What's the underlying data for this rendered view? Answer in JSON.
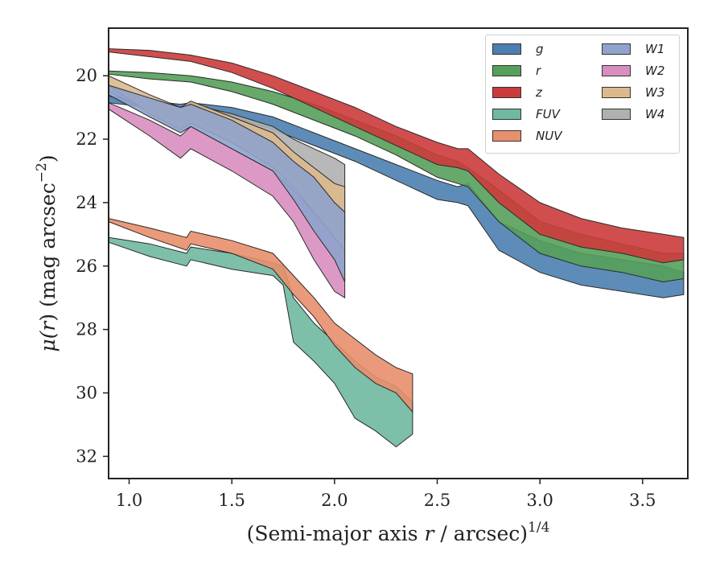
{
  "chart_data": {
    "type": "area",
    "xlabel_main": "(Semi-major axis ",
    "xlabel_var": "r",
    "xlabel_tail": " / arcsec)",
    "xlabel_sup": "1/4",
    "ylabel_main": "μ(",
    "ylabel_var": "r",
    "ylabel_tail": ") (mag arcsec",
    "ylabel_sup": "−2",
    "ylabel_close": ")",
    "xlim": [
      0.9,
      3.72
    ],
    "ylim": [
      32.7,
      18.5
    ],
    "x_ticks": [
      1.0,
      1.5,
      2.0,
      2.5,
      3.0,
      3.5
    ],
    "x_tick_labels": [
      "1.0",
      "1.5",
      "2.0",
      "2.5",
      "3.0",
      "3.5"
    ],
    "y_ticks": [
      20,
      22,
      24,
      26,
      28,
      30,
      32
    ],
    "y_tick_labels": [
      "20",
      "22",
      "24",
      "26",
      "28",
      "30",
      "32"
    ],
    "legend_placement": "top-right",
    "series": [
      {
        "name": "g",
        "color": "#4c7fb0",
        "points": [
          [
            0.9,
            20.65,
            20.85
          ],
          [
            1.1,
            20.8,
            21.0
          ],
          [
            1.25,
            20.9,
            21.2
          ],
          [
            1.3,
            20.85,
            21.1
          ],
          [
            1.5,
            21.0,
            21.3
          ],
          [
            1.7,
            21.3,
            21.7
          ],
          [
            1.9,
            21.8,
            22.2
          ],
          [
            2.1,
            22.3,
            22.7
          ],
          [
            2.3,
            22.8,
            23.3
          ],
          [
            2.5,
            23.3,
            23.9
          ],
          [
            2.6,
            23.5,
            24.0
          ],
          [
            2.65,
            23.4,
            24.1
          ],
          [
            2.8,
            24.6,
            25.5
          ],
          [
            3.0,
            25.2,
            26.2
          ],
          [
            3.2,
            25.6,
            26.6
          ],
          [
            3.4,
            25.8,
            26.8
          ],
          [
            3.6,
            26.0,
            27.0
          ],
          [
            3.7,
            26.2,
            26.9
          ]
        ]
      },
      {
        "name": "r",
        "color": "#55a05a",
        "points": [
          [
            0.9,
            19.85,
            19.95
          ],
          [
            1.1,
            19.9,
            20.1
          ],
          [
            1.3,
            20.0,
            20.2
          ],
          [
            1.5,
            20.2,
            20.5
          ],
          [
            1.7,
            20.5,
            20.9
          ],
          [
            1.9,
            20.9,
            21.4
          ],
          [
            2.1,
            21.4,
            21.9
          ],
          [
            2.3,
            21.9,
            22.5
          ],
          [
            2.5,
            22.5,
            23.2
          ],
          [
            2.6,
            22.7,
            23.4
          ],
          [
            2.65,
            22.9,
            23.5
          ],
          [
            2.8,
            23.6,
            24.6
          ],
          [
            3.0,
            24.6,
            25.6
          ],
          [
            3.2,
            25.0,
            26.0
          ],
          [
            3.4,
            25.3,
            26.2
          ],
          [
            3.6,
            25.6,
            26.5
          ],
          [
            3.7,
            25.6,
            26.4
          ]
        ]
      },
      {
        "name": "z",
        "color": "#cc3b3b",
        "points": [
          [
            0.9,
            19.15,
            19.25
          ],
          [
            1.1,
            19.2,
            19.4
          ],
          [
            1.3,
            19.35,
            19.55
          ],
          [
            1.5,
            19.6,
            19.9
          ],
          [
            1.7,
            20.0,
            20.4
          ],
          [
            1.9,
            20.5,
            21.0
          ],
          [
            2.1,
            21.0,
            21.6
          ],
          [
            2.3,
            21.6,
            22.2
          ],
          [
            2.5,
            22.1,
            22.8
          ],
          [
            2.6,
            22.3,
            22.9
          ],
          [
            2.65,
            22.3,
            23.0
          ],
          [
            2.8,
            23.1,
            24.0
          ],
          [
            3.0,
            24.0,
            25.0
          ],
          [
            3.2,
            24.5,
            25.4
          ],
          [
            3.4,
            24.8,
            25.6
          ],
          [
            3.6,
            25.0,
            25.9
          ],
          [
            3.7,
            25.1,
            25.8
          ]
        ]
      },
      {
        "name": "FUV",
        "color": "#70b8a0",
        "points": [
          [
            0.9,
            25.1,
            25.25
          ],
          [
            1.1,
            25.3,
            25.7
          ],
          [
            1.28,
            25.6,
            26.0
          ],
          [
            1.3,
            25.4,
            25.8
          ],
          [
            1.5,
            25.6,
            26.1
          ],
          [
            1.7,
            25.9,
            26.3
          ],
          [
            1.75,
            26.0,
            26.6
          ],
          [
            1.8,
            27.0,
            28.4
          ],
          [
            1.9,
            27.8,
            29.0
          ],
          [
            2.0,
            28.4,
            29.7
          ],
          [
            2.1,
            29.0,
            30.8
          ],
          [
            2.2,
            29.5,
            31.2
          ],
          [
            2.3,
            29.8,
            31.7
          ],
          [
            2.38,
            30.3,
            31.3
          ]
        ]
      },
      {
        "name": "NUV",
        "color": "#e88f6c",
        "points": [
          [
            0.9,
            24.5,
            24.6
          ],
          [
            1.1,
            24.8,
            25.1
          ],
          [
            1.28,
            25.1,
            25.5
          ],
          [
            1.3,
            24.9,
            25.3
          ],
          [
            1.5,
            25.2,
            25.6
          ],
          [
            1.7,
            25.6,
            26.1
          ],
          [
            1.8,
            26.3,
            26.9
          ],
          [
            1.9,
            27.0,
            27.6
          ],
          [
            2.0,
            27.8,
            28.5
          ],
          [
            2.1,
            28.3,
            29.2
          ],
          [
            2.2,
            28.8,
            29.7
          ],
          [
            2.3,
            29.2,
            30.0
          ],
          [
            2.38,
            29.4,
            30.6
          ]
        ]
      },
      {
        "name": "W1",
        "color": "#8fa3cc",
        "points": [
          [
            0.9,
            20.3,
            20.6
          ],
          [
            1.1,
            20.7,
            21.3
          ],
          [
            1.25,
            21.0,
            21.8
          ],
          [
            1.3,
            20.9,
            21.6
          ],
          [
            1.5,
            21.4,
            22.3
          ],
          [
            1.7,
            22.1,
            23.0
          ],
          [
            1.8,
            22.7,
            23.9
          ],
          [
            1.9,
            23.2,
            24.9
          ],
          [
            2.0,
            24.0,
            25.8
          ],
          [
            2.05,
            24.3,
            26.5
          ]
        ]
      },
      {
        "name": "W2",
        "color": "#d98ec0",
        "points": [
          [
            0.9,
            20.85,
            21.05
          ],
          [
            1.1,
            21.4,
            21.9
          ],
          [
            1.25,
            21.9,
            22.6
          ],
          [
            1.3,
            21.6,
            22.3
          ],
          [
            1.5,
            22.3,
            23.0
          ],
          [
            1.7,
            23.0,
            23.8
          ],
          [
            1.8,
            23.6,
            24.6
          ],
          [
            1.9,
            24.3,
            25.8
          ],
          [
            2.0,
            25.1,
            26.8
          ],
          [
            2.05,
            25.5,
            27.0
          ]
        ]
      },
      {
        "name": "W3",
        "color": "#dcb98d",
        "points": [
          [
            0.9,
            20.0,
            20.3
          ],
          [
            1.1,
            20.6,
            21.2
          ],
          [
            1.25,
            21.0,
            21.7
          ],
          [
            1.3,
            20.8,
            21.5
          ],
          [
            1.5,
            21.3,
            22.1
          ],
          [
            1.7,
            21.8,
            22.9
          ],
          [
            1.8,
            22.4,
            23.5
          ],
          [
            1.9,
            22.9,
            24.3
          ],
          [
            2.0,
            23.4,
            25.2
          ],
          [
            2.05,
            23.5,
            25.5
          ]
        ]
      },
      {
        "name": "W4",
        "color": "#b0b0b0",
        "points": [
          [
            0.9,
            20.3,
            20.5
          ],
          [
            1.1,
            20.8,
            21.1
          ],
          [
            1.25,
            21.0,
            21.4
          ],
          [
            1.3,
            20.9,
            21.3
          ],
          [
            1.5,
            21.2,
            21.9
          ],
          [
            1.7,
            21.6,
            22.6
          ],
          [
            1.8,
            22.0,
            23.2
          ],
          [
            1.9,
            22.3,
            23.9
          ],
          [
            2.0,
            22.6,
            24.7
          ],
          [
            2.05,
            22.8,
            25.2
          ]
        ]
      }
    ]
  },
  "legend": {
    "items": [
      {
        "label": "g",
        "color": "#4c7fb0"
      },
      {
        "label": "r",
        "color": "#55a05a"
      },
      {
        "label": "z",
        "color": "#cc3b3b"
      },
      {
        "label": "FUV",
        "color": "#70b8a0"
      },
      {
        "label": "NUV",
        "color": "#e88f6c"
      },
      {
        "label": "W1",
        "color": "#8fa3cc"
      },
      {
        "label": "W2",
        "color": "#d98ec0"
      },
      {
        "label": "W3",
        "color": "#dcb98d"
      },
      {
        "label": "W4",
        "color": "#b0b0b0"
      }
    ]
  }
}
